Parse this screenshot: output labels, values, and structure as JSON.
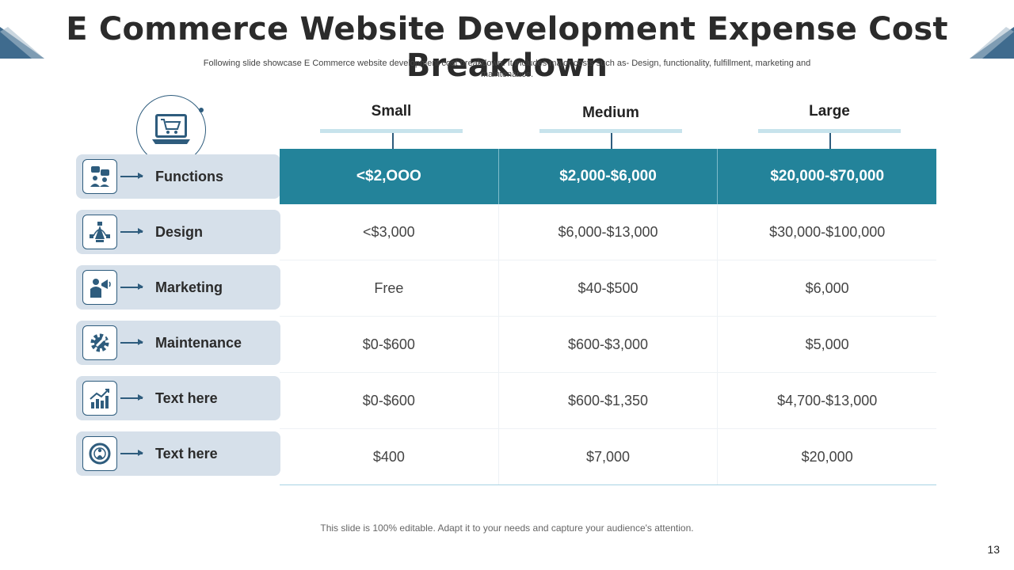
{
  "title": "E Commerce Website Development Expense Cost Breakdown",
  "subtitle": "Following slide showcase E Commerce website development cost breakdown. It includes major costs such as- Design, functionality, fulfillment, marketing and maintenance.",
  "columns": [
    "Small",
    "Medium",
    "Large"
  ],
  "rows": [
    {
      "label": "Functions",
      "icon": "people-chat-icon",
      "values": [
        "<$2,OOO",
        "$2,000-$6,000",
        "$20,000-$70,000"
      ]
    },
    {
      "label": "Design",
      "icon": "vector-pen-icon",
      "values": [
        "<$3,000",
        "$6,000-$13,000",
        "$30,000-$100,000"
      ]
    },
    {
      "label": "Marketing",
      "icon": "megaphone-person-icon",
      "values": [
        "Free",
        "$40-$500",
        "$6,000"
      ]
    },
    {
      "label": "Maintenance",
      "icon": "gear-wrench-icon",
      "values": [
        "$0-$600",
        "$600-$3,000",
        "$5,000"
      ]
    },
    {
      "label": "Text here",
      "icon": "growth-chart-icon",
      "values": [
        "$0-$600",
        "$600-$1,350",
        "$4,700-$13,000"
      ]
    },
    {
      "label": "Text here",
      "icon": "lifebuoy-person-icon",
      "values": [
        "$400",
        "$7,000",
        "$20,000"
      ]
    }
  ],
  "footer": "This slide is 100% editable. Adapt it to your needs and capture your audience's attention.",
  "page_number": "13",
  "colors": {
    "header_teal": "#23839a",
    "label_bg": "#d6e0ea",
    "accent_navy": "#2e5c7d",
    "bar_light": "#c7e3ec"
  }
}
